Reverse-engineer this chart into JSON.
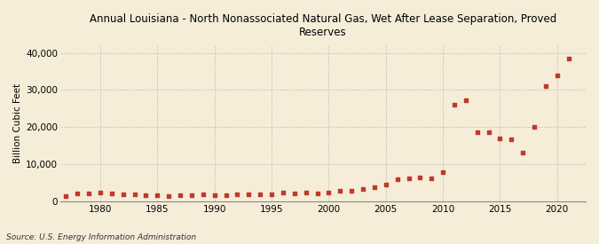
{
  "title": "Annual Louisiana - North Nonassociated Natural Gas, Wet After Lease Separation, Proved\nReserves",
  "ylabel": "Billion Cubic Feet",
  "source": "Source: U.S. Energy Information Administration",
  "background_color": "#f5edd8",
  "dot_color": "#c0392b",
  "years": [
    1977,
    1978,
    1979,
    1980,
    1981,
    1982,
    1983,
    1984,
    1985,
    1986,
    1987,
    1988,
    1989,
    1990,
    1991,
    1992,
    1993,
    1994,
    1995,
    1996,
    1997,
    1998,
    1999,
    2000,
    2001,
    2002,
    2003,
    2004,
    2005,
    2006,
    2007,
    2008,
    2009,
    2010,
    2011,
    2012,
    2013,
    2014,
    2015,
    2016,
    2017,
    2018,
    2019,
    2020,
    2021
  ],
  "values": [
    1400,
    2000,
    2100,
    2200,
    2100,
    1900,
    1700,
    1500,
    1500,
    1400,
    1500,
    1600,
    1700,
    1600,
    1600,
    1700,
    1700,
    1800,
    1800,
    2200,
    2100,
    2200,
    2100,
    2300,
    2800,
    2800,
    3200,
    3800,
    4500,
    5800,
    6100,
    6400,
    6200,
    7700,
    26000,
    27200,
    18600,
    18700,
    16800,
    16700,
    13000,
    20000,
    31000,
    34000,
    38500
  ],
  "ylim": [
    0,
    42000
  ],
  "xlim": [
    1976.5,
    2022.5
  ],
  "yticks": [
    0,
    10000,
    20000,
    30000,
    40000
  ],
  "xticks": [
    1980,
    1985,
    1990,
    1995,
    2000,
    2005,
    2010,
    2015,
    2020
  ]
}
